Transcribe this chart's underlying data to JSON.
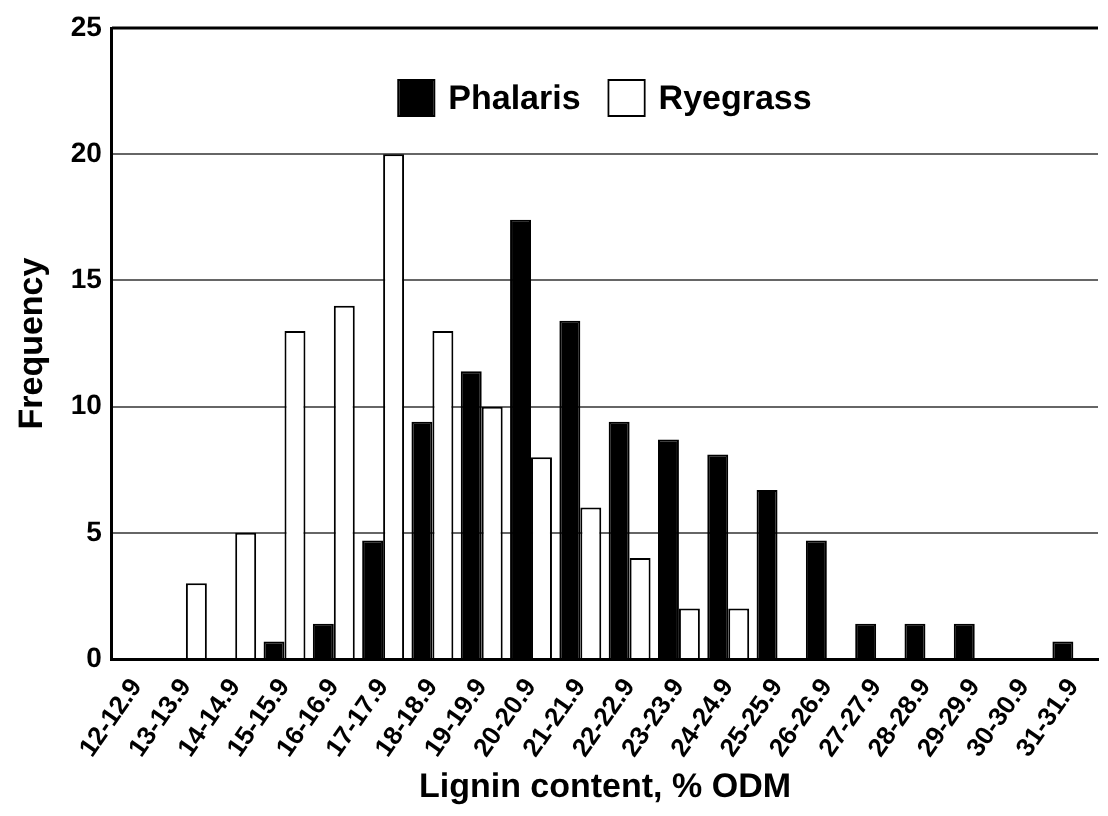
{
  "chart_data": {
    "type": "bar",
    "xlabel": "Lignin content, % ODM",
    "ylabel": "Frequency",
    "categories": [
      "12-12.9",
      "13-13.9",
      "14-14.9",
      "15-15.9",
      "16-16.9",
      "17-17.9",
      "18-18.9",
      "19-19.9",
      "20-20.9",
      "21-21.9",
      "22-22.9",
      "23-23.9",
      "24-24.9",
      "25-25.9",
      "26-26.9",
      "27-27.9",
      "28-28.9",
      "29-29.9",
      "30-30.9",
      "31-31.9"
    ],
    "series": [
      {
        "name": "Phalaris",
        "color": "#000000",
        "values": [
          0,
          0,
          0,
          0.7,
          1.4,
          4.7,
          9.4,
          11.4,
          17.4,
          13.4,
          9.4,
          8.7,
          8.1,
          6.7,
          4.7,
          1.4,
          1.4,
          1.4,
          0,
          0.7
        ]
      },
      {
        "name": "Ryegrass",
        "color": "#ffffff",
        "values": [
          0,
          3,
          5,
          13,
          14,
          20,
          13,
          10,
          8,
          6,
          4,
          2,
          2,
          0,
          0,
          0,
          0,
          0,
          0,
          0
        ]
      }
    ],
    "ylim": [
      0,
      25
    ],
    "yticks": [
      0,
      5,
      10,
      15,
      20,
      25
    ],
    "grid": "y",
    "legend": "top"
  }
}
